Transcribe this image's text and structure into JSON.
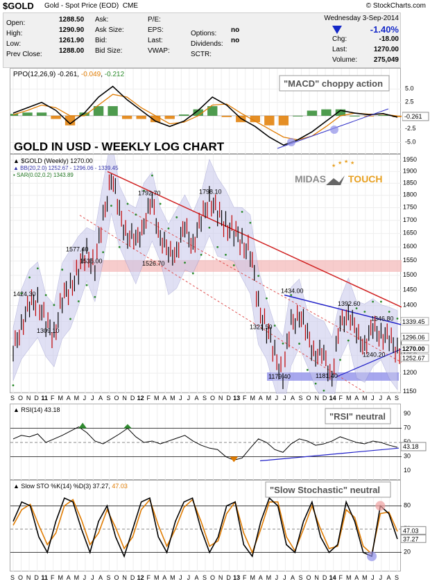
{
  "header": {
    "ticker": "$GOLD",
    "name": "Gold - Spot Price (EOD)",
    "exchange": "CME",
    "copyright": "© StockCharts.com",
    "date": "Wednesday  3-Sep-2014",
    "change_pct": "-1.40%",
    "down_color": "#1428c8"
  },
  "quote_left": [
    {
      "label": "Open:",
      "value": "1288.50"
    },
    {
      "label": "High:",
      "value": "1290.90"
    },
    {
      "label": "Low:",
      "value": "1261.90"
    },
    {
      "label": "Prev Close:",
      "value": "1288.00"
    }
  ],
  "quote_mid": [
    "Ask:",
    "Ask Size:",
    "Bid:",
    "Bid Size:"
  ],
  "quote_mid2": [
    "P/E:",
    "EPS:",
    "Last:",
    "VWAP:"
  ],
  "quote_mid3": [
    {
      "label": "",
      "value": ""
    },
    {
      "label": "Options:",
      "value": "no"
    },
    {
      "label": "Dividends:",
      "value": "no"
    },
    {
      "label": "SCTR:",
      "value": ""
    }
  ],
  "quote_right": [
    {
      "label": "Chg:",
      "value": "-18.00"
    },
    {
      "label": "Last:",
      "value": "1270.00"
    },
    {
      "label": "Volume:",
      "value": "275,049"
    }
  ],
  "ppo": {
    "legend_name": "PPO(12,26,9)",
    "legend_v1": "-0.261",
    "legend_v2": "-0.049",
    "legend_v3": "-0.212",
    "annotation": "\"MACD\" choppy action",
    "y_ticks": [
      "5.0",
      "2.5",
      "-2.5",
      "-5.0"
    ],
    "current": "-0.261"
  },
  "main": {
    "title_overlay": "GOLD IN USD - WEEKLY LOG CHART",
    "legend_main": "$GOLD (Weekly) 1270.00",
    "legend_bb": "BB(20,2.0) 1252.67 - 1296.06 - 1339.45",
    "legend_sar": "SAR(0.02,0.2) 1343.89",
    "logo_left": "MIDAS",
    "logo_right": "TOUCH",
    "y_ticks": [
      "1950",
      "1900",
      "1850",
      "1800",
      "1750",
      "1700",
      "1650",
      "1600",
      "1550",
      "1500",
      "1450",
      "1400",
      "1350",
      "1300",
      "1250",
      "1200",
      "1150"
    ],
    "price_labels": [
      "1577.40",
      "1535.00",
      "1424.30",
      "1309.10",
      "1792.70",
      "1526.70",
      "1798.10",
      "1434.00",
      "1321.50",
      "1179.40",
      "1181.40",
      "1392.60",
      "1346.80",
      "1240.20"
    ],
    "right_labels": {
      "bb_upper": "1339.45",
      "bb_mid": "1296.06",
      "last": "1270.00",
      "bb_lower": "1252.67"
    }
  },
  "rsi": {
    "legend": "RSI(14) 43.18",
    "annotation": "\"RSI\" neutral",
    "y_ticks": [
      "90",
      "70",
      "50",
      "30",
      "10"
    ],
    "current": "43.18"
  },
  "sto": {
    "legend_name": "Slow STO %K(14) %D(3)",
    "legend_k": "37.27",
    "legend_d": "47.03",
    "annotation": "\"Slow Stochastic\" neutral",
    "y_ticks": [
      "80",
      "50",
      "20"
    ],
    "current_d": "47.03",
    "current_k": "37.27"
  },
  "x_axis": [
    "S",
    "O",
    "N",
    "D",
    "11",
    "F",
    "M",
    "A",
    "M",
    "J",
    "J",
    "A",
    "S",
    "O",
    "N",
    "D",
    "12",
    "F",
    "M",
    "A",
    "M",
    "J",
    "J",
    "A",
    "S",
    "O",
    "N",
    "D",
    "13",
    "F",
    "M",
    "A",
    "M",
    "J",
    "J",
    "A",
    "S",
    "O",
    "N",
    "D",
    "14",
    "F",
    "M",
    "A",
    "M",
    "J",
    "J",
    "A",
    "S"
  ],
  "chart_data": [
    {
      "type": "line",
      "title": "PPO(12,26,9)",
      "ylim": [
        -6.5,
        7
      ],
      "series": [
        {
          "name": "PPO",
          "values": [
            0.5,
            1.5,
            2.5,
            1.0,
            -1.5,
            0.5,
            3.5,
            5.5,
            3.0,
            1.0,
            -1.0,
            -2.0,
            -1.0,
            1.0,
            3.5,
            2.0,
            -0.5,
            -2.0,
            -4.0,
            -5.5,
            -4.5,
            -3.0,
            -1.0,
            1.0,
            0.5,
            0.2,
            0.4,
            -0.261
          ]
        },
        {
          "name": "Signal",
          "values": [
            0.2,
            1.0,
            2.0,
            1.5,
            0.0,
            0.0,
            2.0,
            4.0,
            3.5,
            1.5,
            0.0,
            -1.5,
            -1.2,
            0.0,
            2.0,
            2.2,
            0.5,
            -1.0,
            -2.5,
            -4.0,
            -4.5,
            -3.8,
            -2.0,
            0.0,
            0.5,
            0.3,
            0.3,
            -0.049
          ]
        }
      ]
    },
    {
      "type": "line",
      "title": "$GOLD (Weekly) 1270.00",
      "ylim": [
        1150,
        1950
      ],
      "scale": "log",
      "series": [
        {
          "name": "$GOLD",
          "values": [
            1255,
            1345,
            1395,
            1424,
            1340,
            1310,
            1420,
            1460,
            1520,
            1577,
            1535,
            1700,
            1890,
            1720,
            1650,
            1610,
            1700,
            1760,
            1650,
            1560,
            1600,
            1660,
            1620,
            1690,
            1798,
            1720,
            1690,
            1650,
            1620,
            1580,
            1400,
            1330,
            1250,
            1200,
            1340,
            1380,
            1300,
            1260,
            1240,
            1200,
            1330,
            1390,
            1300,
            1290,
            1320,
            1320,
            1290,
            1270
          ]
        }
      ]
    },
    {
      "type": "line",
      "title": "RSI(14) 43.18",
      "ylim": [
        0,
        100
      ],
      "series": [
        {
          "name": "RSI",
          "values": [
            55,
            60,
            58,
            62,
            50,
            55,
            60,
            66,
            72,
            64,
            52,
            48,
            55,
            62,
            70,
            58,
            50,
            52,
            48,
            52,
            56,
            60,
            52,
            46,
            42,
            40,
            30,
            25,
            28,
            42,
            55,
            50,
            40,
            36,
            48,
            55,
            52,
            46,
            48,
            52,
            58,
            54,
            50,
            48,
            52,
            50,
            46,
            43.18
          ]
        }
      ]
    },
    {
      "type": "line",
      "title": "Slow STO %K(14) %D(3)",
      "ylim": [
        0,
        100
      ],
      "series": [
        {
          "name": "%K",
          "values": [
            60,
            85,
            80,
            40,
            20,
            60,
            90,
            85,
            50,
            20,
            60,
            80,
            40,
            15,
            50,
            85,
            90,
            40,
            20,
            60,
            85,
            90,
            50,
            20,
            40,
            80,
            85,
            30,
            15,
            60,
            90,
            80,
            30,
            20,
            60,
            85,
            40,
            20,
            30,
            85,
            60,
            20,
            15,
            80,
            70,
            37.27
          ]
        },
        {
          "name": "%D",
          "values": [
            55,
            75,
            82,
            55,
            30,
            45,
            80,
            88,
            62,
            30,
            45,
            75,
            52,
            25,
            40,
            75,
            88,
            55,
            28,
            50,
            78,
            88,
            60,
            28,
            35,
            70,
            85,
            45,
            20,
            50,
            85,
            85,
            40,
            22,
            50,
            80,
            50,
            25,
            28,
            75,
            65,
            28,
            18,
            70,
            72,
            47.03
          ]
        }
      ]
    }
  ]
}
